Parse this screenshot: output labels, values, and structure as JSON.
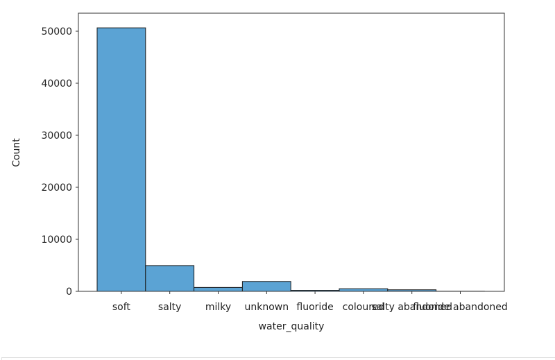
{
  "chart_data": {
    "type": "bar",
    "title": "",
    "xlabel": "water_quality",
    "ylabel": "Count",
    "categories": [
      "soft",
      "salty",
      "milky",
      "unknown",
      "fluoride",
      "coloured",
      "salty abandoned",
      "fluoride abandoned"
    ],
    "values": [
      50650,
      4950,
      750,
      1900,
      200,
      500,
      300,
      20
    ],
    "yticks": [
      0,
      10000,
      20000,
      30000,
      40000,
      50000
    ],
    "ytick_labels": [
      "0",
      "10000",
      "20000",
      "30000",
      "40000",
      "50000"
    ],
    "ylim": [
      0,
      53000
    ],
    "grid": false,
    "legend": null,
    "bar_color": "#5ba3d4",
    "edge_color": "#1a1a1a"
  }
}
